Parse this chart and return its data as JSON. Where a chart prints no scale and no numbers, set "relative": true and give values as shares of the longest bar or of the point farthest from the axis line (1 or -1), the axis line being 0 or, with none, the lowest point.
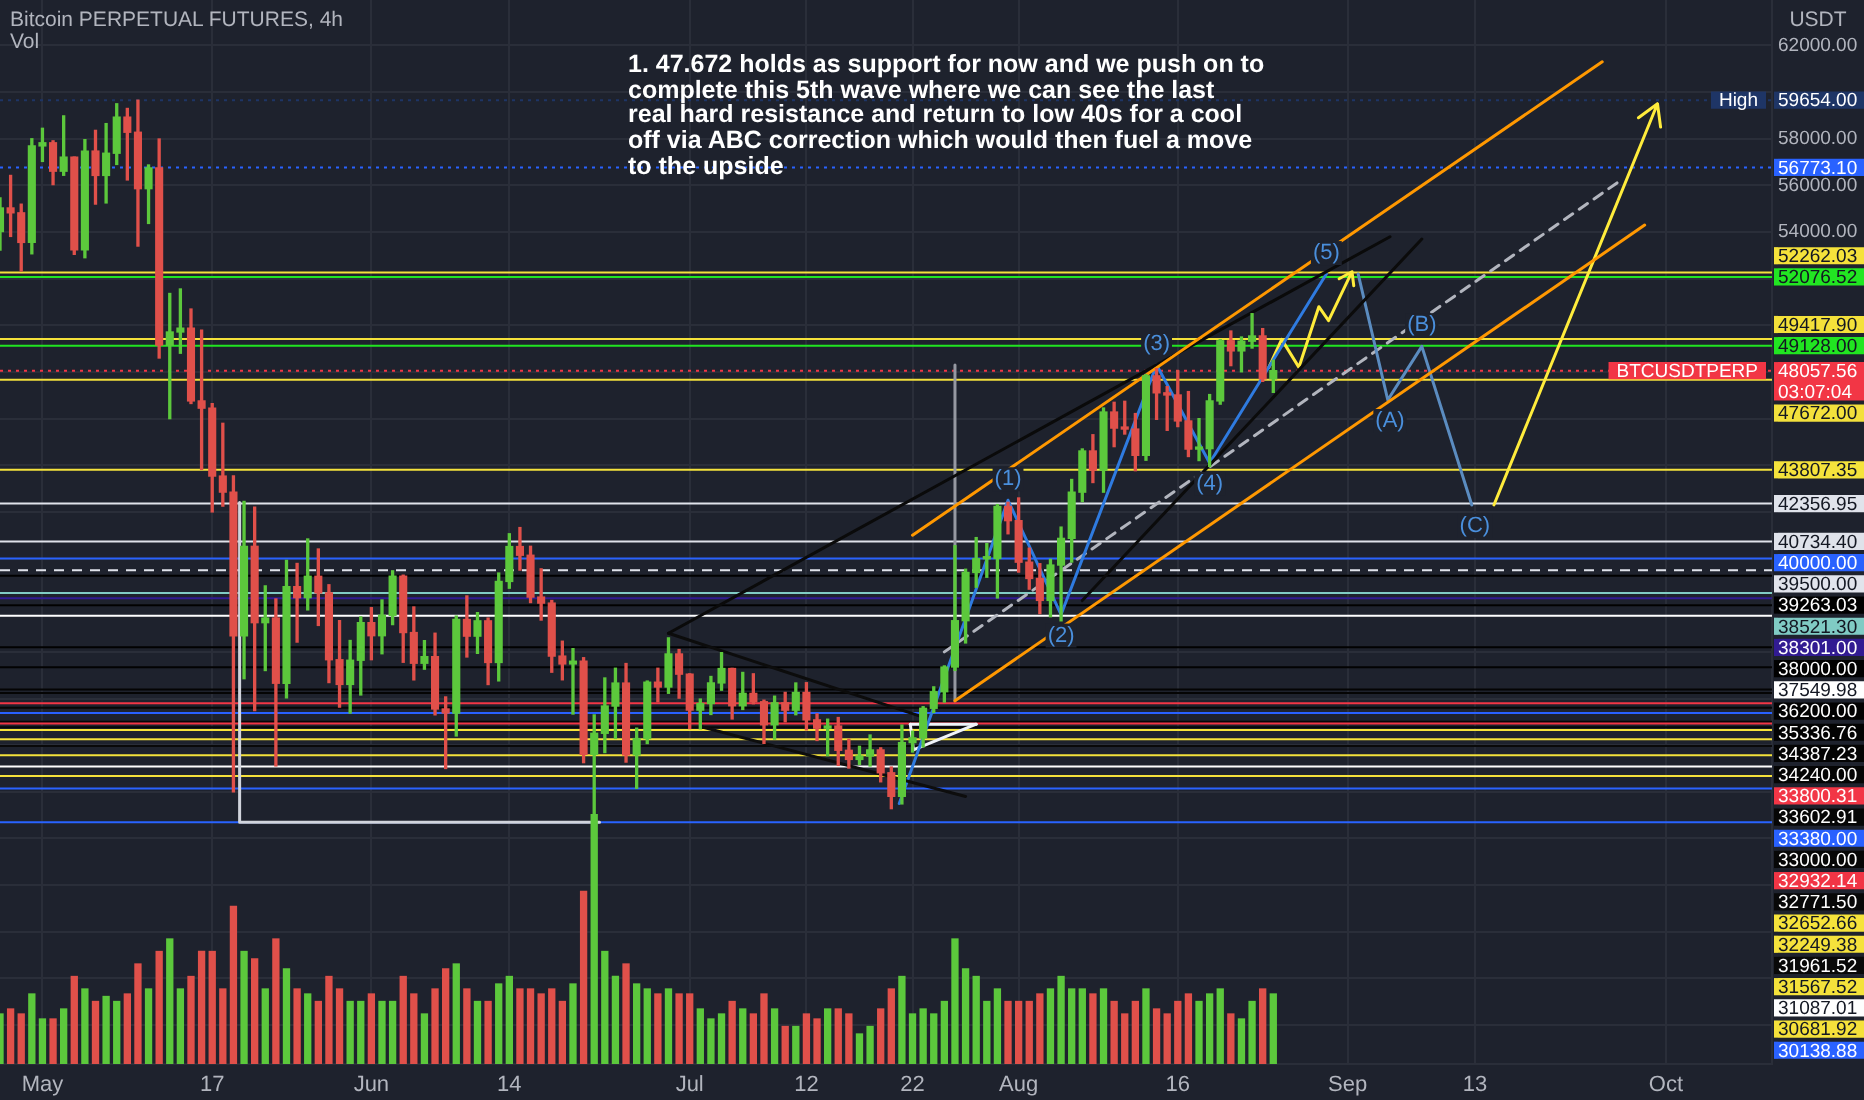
{
  "chart_data": [
    {
      "type": "candlestick",
      "title": "Bitcoin PERPETUAL FUTURES, 4h",
      "ylabel": "USDT",
      "x": [
        "--04-27",
        "--04-28",
        "--04-29",
        "--04-30",
        "--05-01",
        "--05-02",
        "--05-03",
        "--05-04",
        "--05-05",
        "--05-06",
        "--05-07",
        "--05-08",
        "--05-09",
        "--05-10",
        "--05-11",
        "--05-12",
        "--05-13",
        "--05-14",
        "--05-15",
        "--05-16",
        "--05-17",
        "--05-18",
        "--05-19",
        "--05-20",
        "--05-21",
        "--05-22",
        "--05-23",
        "--05-24",
        "--05-25",
        "--05-26",
        "--05-27",
        "--05-28",
        "--05-29",
        "--05-30",
        "--05-31",
        "--06-01",
        "--06-02",
        "--06-03",
        "--06-04",
        "--06-05",
        "--06-06",
        "--06-07",
        "--06-08",
        "--06-09",
        "--06-10",
        "--06-11",
        "--06-12",
        "--06-13",
        "--06-14",
        "--06-15",
        "--06-16",
        "--06-17",
        "--06-18",
        "--06-19",
        "--06-20",
        "--06-21",
        "--06-22",
        "--06-23",
        "--06-24",
        "--06-25",
        "--06-26",
        "--06-27",
        "--06-28",
        "--06-29",
        "--06-30",
        "--07-01",
        "--07-02",
        "--07-03",
        "--07-04",
        "--07-05",
        "--07-06",
        "--07-07",
        "--07-08",
        "--07-09",
        "--07-10",
        "--07-11",
        "--07-12",
        "--07-13",
        "--07-14",
        "--07-15",
        "--07-16",
        "--07-17",
        "--07-18",
        "--07-19",
        "--07-20",
        "--07-21",
        "--07-22",
        "--07-23",
        "--07-24",
        "--07-25",
        "--07-26",
        "--07-27",
        "--07-28",
        "--07-29",
        "--07-30",
        "--07-31",
        "--08-01",
        "--08-02",
        "--08-03",
        "--08-04",
        "--08-05",
        "--08-06",
        "--08-07",
        "--08-08",
        "--08-09",
        "--08-10",
        "--08-11",
        "--08-12",
        "--08-13",
        "--08-14",
        "--08-15",
        "--08-16",
        "--08-17",
        "--08-18",
        "--08-19",
        "--08-20",
        "--08-21",
        "--08-22",
        "--08-23",
        "--08-24",
        "--08-25"
      ],
      "ohlc": [
        [
          54021,
          55460,
          53222,
          55034
        ],
        [
          55034,
          56428,
          53813,
          54825
        ],
        [
          54825,
          55195,
          52330,
          53556
        ],
        [
          53556,
          58000,
          53068,
          57694
        ],
        [
          57694,
          58449,
          57029,
          57828
        ],
        [
          57828,
          57911,
          56035,
          56610
        ],
        [
          56610,
          58981,
          56435,
          57213
        ],
        [
          57213,
          57214,
          53046,
          53241
        ],
        [
          53241,
          57963,
          52900,
          57473
        ],
        [
          57473,
          58360,
          55200,
          56428
        ],
        [
          56428,
          58650,
          55250,
          57380
        ],
        [
          57380,
          59500,
          56900,
          58928
        ],
        [
          58928,
          59300,
          56235,
          58280
        ],
        [
          58280,
          59654,
          53400,
          55860
        ],
        [
          55860,
          56876,
          54370,
          56750
        ],
        [
          56750,
          57990,
          48600,
          49150
        ],
        [
          49150,
          51367,
          46000,
          49716
        ],
        [
          49716,
          51560,
          48805,
          49880
        ],
        [
          49880,
          50700,
          46650,
          46760
        ],
        [
          46760,
          49795,
          43825,
          46450
        ],
        [
          46450,
          46643,
          42001,
          43538
        ],
        [
          43538,
          45800,
          42250,
          42850
        ],
        [
          42850,
          43546,
          30000,
          36690
        ],
        [
          36690,
          42451,
          34850,
          40526
        ],
        [
          40526,
          42200,
          33488,
          37252
        ],
        [
          37252,
          38829,
          35200,
          37449
        ],
        [
          37449,
          38270,
          31111,
          34655
        ],
        [
          34655,
          39920,
          34031,
          38796
        ],
        [
          38796,
          39791,
          36420,
          38324
        ],
        [
          38324,
          40841,
          37800,
          39241
        ],
        [
          39241,
          40411,
          37134,
          38529
        ],
        [
          38529,
          38877,
          34684,
          35663
        ],
        [
          35663,
          37338,
          33632,
          34605
        ],
        [
          34605,
          36488,
          33379,
          35641
        ],
        [
          35641,
          37499,
          34153,
          37254
        ],
        [
          37254,
          37894,
          35666,
          36693
        ],
        [
          36693,
          38225,
          35920,
          37568
        ],
        [
          37568,
          39476,
          37170,
          39246
        ],
        [
          39246,
          39289,
          35555,
          36829
        ],
        [
          36829,
          37925,
          34800,
          35513
        ],
        [
          35513,
          36480,
          35258,
          35796
        ],
        [
          35796,
          36800,
          33300,
          33552
        ],
        [
          33552,
          34068,
          31000,
          33380
        ],
        [
          33380,
          37534,
          32396,
          37388
        ],
        [
          37388,
          38399,
          35782,
          36675
        ],
        [
          36675,
          37681,
          35937,
          37331
        ],
        [
          37331,
          37447,
          34600,
          35546
        ],
        [
          35546,
          39380,
          34757,
          39020
        ],
        [
          39020,
          41064,
          38730,
          40516
        ],
        [
          40516,
          41330,
          39506,
          40144
        ],
        [
          40144,
          40527,
          38116,
          38349
        ],
        [
          38349,
          39560,
          37365,
          38092
        ],
        [
          38092,
          38202,
          35129,
          35819
        ],
        [
          35819,
          36457,
          34803,
          35483
        ],
        [
          35483,
          36137,
          33336,
          35600
        ],
        [
          35600,
          35750,
          31251,
          31608
        ],
        [
          31608,
          33298,
          28805,
          32509
        ],
        [
          32509,
          34881,
          31683,
          33678
        ],
        [
          33678,
          35298,
          32286,
          34663
        ],
        [
          34663,
          35500,
          31275,
          31584
        ],
        [
          31584,
          32730,
          30151,
          32283
        ],
        [
          32283,
          34749,
          32071,
          34700
        ],
        [
          34700,
          35297,
          33862,
          34494
        ],
        [
          34494,
          36600,
          34225,
          35911
        ],
        [
          35911,
          36100,
          34017,
          35045
        ],
        [
          35045,
          35057,
          32711,
          33504
        ],
        [
          33504,
          33977,
          32699,
          33786
        ],
        [
          33786,
          34945,
          33316,
          34669
        ],
        [
          34669,
          35967,
          34357,
          35286
        ],
        [
          35286,
          35293,
          33125,
          33690
        ],
        [
          33690,
          35118,
          33532,
          34220
        ],
        [
          34220,
          35059,
          33777,
          33862
        ],
        [
          33862,
          33928,
          32078,
          32875
        ],
        [
          32875,
          34100,
          32261,
          33815
        ],
        [
          33815,
          34262,
          33004,
          33502
        ],
        [
          33502,
          34666,
          33306,
          34259
        ],
        [
          34259,
          34678,
          32658,
          33086
        ],
        [
          33086,
          33340,
          32202,
          32730
        ],
        [
          32730,
          33114,
          31550,
          32820
        ],
        [
          32820,
          33185,
          31133,
          31780
        ],
        [
          31780,
          32249,
          31020,
          31389
        ],
        [
          31389,
          31949,
          31179,
          31533
        ],
        [
          31533,
          32435,
          31108,
          31796
        ],
        [
          31796,
          31885,
          30429,
          30817
        ],
        [
          30817,
          31063,
          29278,
          29807
        ],
        [
          29807,
          32858,
          29482,
          32110
        ],
        [
          32110,
          32595,
          31708,
          32313
        ],
        [
          32313,
          33650,
          31925,
          33581
        ],
        [
          33581,
          34500,
          33401,
          34292
        ],
        [
          34292,
          35398,
          33851,
          35350
        ],
        [
          35350,
          40550,
          35205,
          37337
        ],
        [
          37337,
          39542,
          36384,
          39406
        ],
        [
          39406,
          40900,
          38772,
          39995
        ],
        [
          39995,
          40640,
          39200,
          40008
        ],
        [
          40008,
          42316,
          38313,
          42235
        ],
        [
          42235,
          42414,
          41064,
          41626
        ],
        [
          41626,
          42599,
          39423,
          39846
        ],
        [
          39846,
          40446,
          38690,
          39147
        ],
        [
          39147,
          39780,
          37642,
          38207
        ],
        [
          38207,
          39969,
          37508,
          39723
        ],
        [
          39723,
          41350,
          37332,
          40867
        ],
        [
          40867,
          43392,
          39853,
          42848
        ],
        [
          42848,
          44700,
          42446,
          44614
        ],
        [
          44614,
          45310,
          43261,
          43792
        ],
        [
          43792,
          46456,
          42848,
          46284
        ],
        [
          46284,
          46700,
          44800,
          45595
        ],
        [
          45595,
          46743,
          45341,
          45554
        ],
        [
          45554,
          46218,
          43770,
          44428
        ],
        [
          44428,
          47886,
          44217,
          47835
        ],
        [
          47835,
          48144,
          45971,
          47107
        ],
        [
          47107,
          47372,
          45500,
          47015
        ],
        [
          47015,
          48053,
          45660,
          45902
        ],
        [
          45902,
          47160,
          44376,
          44695
        ],
        [
          44695,
          46000,
          44203,
          44714
        ],
        [
          44714,
          47033,
          43950,
          46760
        ],
        [
          46760,
          49382,
          46622,
          49339
        ],
        [
          49339,
          49757,
          48273,
          48905
        ],
        [
          48905,
          49500,
          48010,
          49321
        ],
        [
          49321,
          50500,
          49028,
          49546
        ],
        [
          49546,
          49860,
          47600,
          47707
        ],
        [
          47707,
          48500,
          47127,
          48057.56
        ]
      ],
      "colors": [
        "#5cc83c",
        "#e0504a",
        "#e0504a",
        "#5cc83c",
        "#5cc83c",
        "#e0504a",
        "#5cc83c",
        "#e0504a",
        "#5cc83c",
        "#e0504a",
        "#5cc83c",
        "#5cc83c",
        "#e0504a",
        "#e0504a",
        "#5cc83c",
        "#e0504a",
        "#5cc83c",
        "#5cc83c",
        "#e0504a",
        "#e0504a",
        "#e0504a",
        "#e0504a",
        "#e0504a",
        "#5cc83c",
        "#e0504a",
        "#5cc83c",
        "#e0504a",
        "#5cc83c",
        "#e0504a",
        "#5cc83c",
        "#e0504a",
        "#e0504a",
        "#e0504a",
        "#5cc83c",
        "#5cc83c",
        "#e0504a",
        "#5cc83c",
        "#5cc83c",
        "#e0504a",
        "#e0504a",
        "#5cc83c",
        "#e0504a",
        "#e0504a",
        "#5cc83c",
        "#e0504a",
        "#5cc83c",
        "#e0504a",
        "#5cc83c",
        "#5cc83c",
        "#e0504a",
        "#e0504a",
        "#e0504a",
        "#e0504a",
        "#e0504a",
        "#5cc83c",
        "#e0504a",
        "#5cc83c",
        "#5cc83c",
        "#5cc83c",
        "#e0504a",
        "#5cc83c",
        "#5cc83c",
        "#e0504a",
        "#5cc83c",
        "#e0504a",
        "#e0504a",
        "#5cc83c",
        "#5cc83c",
        "#5cc83c",
        "#e0504a",
        "#5cc83c",
        "#e0504a",
        "#e0504a",
        "#5cc83c",
        "#e0504a",
        "#5cc83c",
        "#e0504a",
        "#e0504a",
        "#5cc83c",
        "#e0504a",
        "#e0504a",
        "#5cc83c",
        "#5cc83c",
        "#e0504a",
        "#e0504a",
        "#5cc83c",
        "#5cc83c",
        "#5cc83c",
        "#5cc83c",
        "#5cc83c",
        "#5cc83c",
        "#5cc83c",
        "#5cc83c",
        "#5cc83c",
        "#5cc83c",
        "#e0504a",
        "#e0504a",
        "#e0504a",
        "#e0504a",
        "#5cc83c",
        "#5cc83c",
        "#5cc83c",
        "#5cc83c",
        "#e0504a",
        "#5cc83c",
        "#e0504a",
        "#e0504a",
        "#e0504a",
        "#5cc83c",
        "#e0504a",
        "#e0504a",
        "#e0504a",
        "#e0504a",
        "#5cc83c",
        "#5cc83c",
        "#5cc83c",
        "#e0504a",
        "#5cc83c",
        "#5cc83c",
        "#e0504a",
        "#5cc83c"
      ],
      "series": [
        {
          "type": "line",
          "color": "#ff9800",
          "x": [
            "--07-22",
            "--09-25"
          ],
          "values": [
            41000,
            61300
          ]
        },
        {
          "type": "line",
          "color": "#ff9801",
          "x": [
            "--07-26",
            "--09-29"
          ],
          "values": [
            33900,
            54300
          ]
        },
        {
          "type": "line",
          "color": "#0a0a0a",
          "x": [
            "--06-29",
            "--09-05"
          ],
          "values": [
            36800,
            53800
          ]
        },
        {
          "type": "line",
          "color": "#0b0b0b",
          "x": [
            "--08-07",
            "--09-08"
          ],
          "values": [
            38200,
            53700
          ]
        },
        {
          "type": "line",
          "color": "#0c0c0c",
          "x": [
            "--06-29",
            "--07-23"
          ],
          "values": [
            36800,
            33200
          ]
        },
        {
          "type": "line",
          "color": "#0d0d0d",
          "x": [
            "--07-02",
            "--07-27"
          ],
          "values": [
            32800,
            29800
          ]
        },
        {
          "type": "line",
          "color": "#2f7be0",
          "x": [
            "--07-20T18:00",
            "--07-31",
            "--08-05",
            "--08-14",
            "--08-19",
            "--08-30"
          ],
          "values": [
            29500,
            42500,
            37600,
            48300,
            44100,
            52200
          ]
        },
        {
          "type": "line",
          "color": "#ffeb3b",
          "x": [
            "--08-24T14:00",
            "--08-25T19:00",
            "--08-27T10:00",
            "--08-29T07:00",
            "--08-30T05:00",
            "--09-01T10:00",
            "--08-31T05:00",
            "--09-01T10:00",
            "--09-01T14:00"
          ],
          "values": [
            48200,
            49400,
            48200,
            50800,
            50200,
            52300,
            52000,
            52300,
            51700
          ]
        },
        {
          "type": "line",
          "color": "#5b8cc0",
          "x": [
            "--09-02",
            "--09-04T19:00",
            "--09-08",
            "--09-12T17:00"
          ],
          "values": [
            52200,
            46800,
            49100,
            42300
          ]
        },
        {
          "type": "line",
          "color": "#ffec3c",
          "x": [
            "--09-14T19:00",
            "--09-30T05:00",
            "--09-28T10:00",
            "--09-30T05:00",
            "--09-30T12:00"
          ],
          "values": [
            42300,
            59500,
            58900,
            59500,
            58500
          ]
        },
        {
          "type": "line",
          "color": "#b2b5be",
          "line_style": "dashed",
          "x": [
            "--07-25",
            "--09-27"
          ],
          "values": [
            36000,
            56300
          ]
        },
        {
          "type": "line",
          "color": "#d1d4dc",
          "x": [
            "--05-19T14:00",
            "--05-19T14:00",
            "--06-22T12:00"
          ],
          "values": [
            42400,
            28700,
            28700
          ]
        },
        {
          "type": "line",
          "color": "#9598a1",
          "x": [
            "--07-26",
            "--07-26"
          ],
          "values": [
            48300,
            33900
          ]
        },
        {
          "type": "line",
          "color": "#f0f3fa",
          "x": [
            "--07-21T19:00",
            "--07-28"
          ],
          "values": [
            32900,
            32900
          ]
        },
        {
          "type": "line",
          "color": "#f0f3f9",
          "x": [
            "--07-21T19:00",
            "--07-22T02:00",
            "--07-28"
          ],
          "values": [
            32900,
            31800,
            32900
          ]
        }
      ],
      "xlim": [
        "--04-27",
        "--10-11"
      ],
      "xticks": [
        {
          "value": "--05-01",
          "label": "May"
        },
        {
          "value": "--05-17",
          "label": "17"
        },
        {
          "value": "--06-01",
          "label": "Jun"
        },
        {
          "value": "--06-14",
          "label": "14"
        },
        {
          "value": "--07-01",
          "label": "Jul"
        },
        {
          "value": "--07-12",
          "label": "12"
        },
        {
          "value": "--07-22",
          "label": "22"
        },
        {
          "value": "--08-01",
          "label": "Aug"
        },
        {
          "value": "--08-16",
          "label": "16"
        },
        {
          "value": "--09-01",
          "label": "Sep"
        },
        {
          "value": "--09-13",
          "label": "13"
        },
        {
          "value": "--10-01",
          "label": "Oct"
        }
      ],
      "ylim": [
        18330,
        63950
      ],
      "yticks": [
        {
          "value": 20000,
          "label": null
        },
        {
          "value": 22000,
          "label": null
        },
        {
          "value": 24000,
          "label": null
        },
        {
          "value": 26000,
          "label": null
        },
        {
          "value": 28000,
          "label": null
        },
        {
          "value": 30000,
          "label": null
        },
        {
          "value": 32000,
          "label": null
        },
        {
          "value": 34000,
          "label": null
        },
        {
          "value": 36000,
          "label": null
        },
        {
          "value": 38000,
          "label": null
        },
        {
          "value": 40000,
          "label": null
        },
        {
          "value": 42000,
          "label": null
        },
        {
          "value": 44000,
          "label": null
        },
        {
          "value": 46000,
          "label": null
        },
        {
          "value": 48000,
          "label": null
        },
        {
          "value": 50000,
          "label": null
        },
        {
          "value": 52000,
          "label": null
        },
        {
          "value": 54000,
          "label": "54000.00"
        },
        {
          "value": 56000,
          "label": "56000.00"
        },
        {
          "value": 58000,
          "label": "58000.00"
        },
        {
          "value": 60000,
          "label": null
        },
        {
          "value": 62000,
          "label": "62000.00"
        }
      ],
      "grid": true,
      "legend": "right",
      "ref_lines": [
        {
          "axis": "y",
          "value": 59654,
          "label": "59654.00",
          "color": "#1e3566",
          "line_style": "dotted"
        },
        {
          "axis": "y",
          "value": 56773.1,
          "label": "56773.10",
          "color": "#2962ff",
          "line_style": "dotted"
        },
        {
          "axis": "y",
          "value": 52262.03,
          "label": "52262.03",
          "color": "#f5e23b"
        },
        {
          "axis": "y",
          "value": 52076.52,
          "label": "52076.52",
          "color": "#22e622"
        },
        {
          "axis": "y",
          "value": 49417.9,
          "label": "49417.90",
          "color": "#f4e13a"
        },
        {
          "axis": "y",
          "value": 49128,
          "label": "49128.00",
          "color": "#21e521"
        },
        {
          "axis": "y",
          "value": 48057.56,
          "label": "48057.56\n03:07:04",
          "color": "#f23645",
          "line_style": "dotted"
        },
        {
          "axis": "y",
          "value": 47672,
          "label": "47672.00",
          "color": "#f3e03c"
        },
        {
          "axis": "y",
          "value": 43807.35,
          "label": "43807.35",
          "color": "#f5e33c"
        },
        {
          "axis": "y",
          "value": 42356.95,
          "label": "42356.95",
          "color": "#e0e3eb"
        },
        {
          "axis": "y",
          "value": 40734.4,
          "label": "40734.40",
          "color": "#dfe2ea"
        },
        {
          "axis": "y",
          "value": 40000,
          "label": "40000.00",
          "color": "#2962fe"
        },
        {
          "axis": "y",
          "value": 39500,
          "label": "39500.00",
          "color": "#e1e4ec",
          "line_style": "dashed"
        },
        {
          "axis": "y",
          "value": 39263.03,
          "label": "39263.03",
          "color": "#000000"
        },
        {
          "axis": "y",
          "value": 38521.3,
          "label": "38521.30",
          "color": "#80cbc4"
        },
        {
          "axis": "y",
          "value": 38301,
          "label": "38301.00",
          "color": "#311b92"
        },
        {
          "axis": "y",
          "value": 38000,
          "label": "38000.00",
          "color": "#010101"
        },
        {
          "axis": "y",
          "value": 37549.98,
          "label": "37549.98",
          "color": "#ffffff"
        },
        {
          "axis": "y",
          "value": 36200,
          "label": "36200.00",
          "color": "#020202"
        },
        {
          "axis": "y",
          "value": 35336.76,
          "label": "35336.76",
          "color": "#030303"
        },
        {
          "axis": "y",
          "value": 34387.23,
          "label": "34387.23",
          "color": "#040404"
        },
        {
          "axis": "y",
          "value": 34240,
          "label": "34240.00",
          "color": "#050505"
        },
        {
          "axis": "y",
          "value": 33800.31,
          "label": "33800.31",
          "color": "#f23646"
        },
        {
          "axis": "y",
          "value": 33602.91,
          "label": "33602.91",
          "color": "#060606"
        },
        {
          "axis": "y",
          "value": 33380,
          "label": "33380.00",
          "color": "#2961ff"
        },
        {
          "axis": "y",
          "value": 33000,
          "label": "33000.00",
          "color": "#070707"
        },
        {
          "axis": "y",
          "value": 32932.14,
          "label": "32932.14",
          "color": "#f13545"
        },
        {
          "axis": "y",
          "value": 32771.5,
          "label": "32771.50",
          "color": "#080808"
        },
        {
          "axis": "y",
          "value": 32652.66,
          "label": "32652.66",
          "color": "#f6e33b"
        },
        {
          "axis": "y",
          "value": 32249.38,
          "label": "32249.38",
          "color": "#f5e23c"
        },
        {
          "axis": "y",
          "value": 31961.52,
          "label": "31961.52",
          "color": "#090909"
        },
        {
          "axis": "y",
          "value": 31567.52,
          "label": "31567.52",
          "color": "#f4e23b"
        },
        {
          "axis": "y",
          "value": 31087.01,
          "label": "31087.01",
          "color": "#fefefe"
        },
        {
          "axis": "y",
          "value": 30681.92,
          "label": "30681.92",
          "color": "#f5e13b"
        },
        {
          "axis": "y",
          "value": 30138.88,
          "label": "30138.88",
          "color": "#2a62ff"
        },
        {
          "axis": "y",
          "value": 28700,
          "color": "#2963ff"
        }
      ],
      "annotations": [
        "1. 47.672 holds as support for now and we push on to\ncomplete this 5th wave where we can see the last\nreal hard resistance and return to low 40s for a cool\noff via ABC correction which would then fuel a move\nto the upside",
        {
          "text": "High",
          "y": 59654
        },
        {
          "text": "BTCUSDTPERP",
          "y": 48057.56
        },
        {
          "text": "(1)",
          "x": "--07-31",
          "y": 43400
        },
        {
          "text": "(2)",
          "x": "--08-05",
          "y": 36700
        },
        {
          "text": "(3)",
          "x": "--08-14",
          "y": 49200
        },
        {
          "text": "(4)",
          "x": "--08-19",
          "y": 43200
        },
        {
          "text": "(5)",
          "x": "--08-30",
          "y": 53100
        },
        {
          "text": "(A)",
          "x": "--09-05",
          "y": 45900
        },
        {
          "text": "(B)",
          "x": "--09-08",
          "y": 50000
        },
        {
          "text": "(C)",
          "x": "--09-13",
          "y": 41400
        }
      ]
    },
    {
      "type": "bar",
      "title": "Vol",
      "relative": true,
      "x": [
        "--04-27",
        "--04-28",
        "--04-29",
        "--04-30",
        "--05-01",
        "--05-02",
        "--05-03",
        "--05-04",
        "--05-05",
        "--05-06",
        "--05-07",
        "--05-08",
        "--05-09",
        "--05-10",
        "--05-11",
        "--05-12",
        "--05-13",
        "--05-14",
        "--05-15",
        "--05-16",
        "--05-17",
        "--05-18",
        "--05-19",
        "--05-20",
        "--05-21",
        "--05-22",
        "--05-23",
        "--05-24",
        "--05-25",
        "--05-26",
        "--05-27",
        "--05-28",
        "--05-29",
        "--05-30",
        "--05-31",
        "--06-01",
        "--06-02",
        "--06-03",
        "--06-04",
        "--06-05",
        "--06-06",
        "--06-07",
        "--06-08",
        "--06-09",
        "--06-10",
        "--06-11",
        "--06-12",
        "--06-13",
        "--06-14",
        "--06-15",
        "--06-16",
        "--06-17",
        "--06-18",
        "--06-19",
        "--06-20",
        "--06-21",
        "--06-22",
        "--06-23",
        "--06-24",
        "--06-25",
        "--06-26",
        "--06-27",
        "--06-28",
        "--06-29",
        "--06-30",
        "--07-01",
        "--07-02",
        "--07-03",
        "--07-04",
        "--07-05",
        "--07-06",
        "--07-07",
        "--07-08",
        "--07-09",
        "--07-10",
        "--07-11",
        "--07-12",
        "--07-13",
        "--07-14",
        "--07-15",
        "--07-16",
        "--07-17",
        "--07-18",
        "--07-19",
        "--07-20",
        "--07-21",
        "--07-22",
        "--07-23",
        "--07-24",
        "--07-25",
        "--07-26",
        "--07-27",
        "--07-28",
        "--07-29",
        "--07-30",
        "--07-31",
        "--08-01",
        "--08-02",
        "--08-03",
        "--08-04",
        "--08-05",
        "--08-06",
        "--08-07",
        "--08-08",
        "--08-09",
        "--08-10",
        "--08-11",
        "--08-12",
        "--08-13",
        "--08-14",
        "--08-15",
        "--08-16",
        "--08-17",
        "--08-18",
        "--08-19",
        "--08-20",
        "--08-21",
        "--08-22",
        "--08-23",
        "--08-24",
        "--08-25"
      ],
      "values": [
        0.2,
        0.22,
        0.2,
        0.28,
        0.18,
        0.18,
        0.22,
        0.35,
        0.3,
        0.25,
        0.27,
        0.25,
        0.28,
        0.4,
        0.3,
        0.45,
        0.5,
        0.3,
        0.35,
        0.45,
        0.45,
        0.3,
        0.63,
        0.45,
        0.42,
        0.3,
        0.5,
        0.38,
        0.3,
        0.28,
        0.25,
        0.35,
        0.3,
        0.25,
        0.25,
        0.28,
        0.25,
        0.25,
        0.35,
        0.28,
        0.2,
        0.3,
        0.38,
        0.4,
        0.3,
        0.25,
        0.25,
        0.32,
        0.35,
        0.3,
        0.3,
        0.28,
        0.3,
        0.25,
        0.32,
        0.69,
        1,
        0.45,
        0.35,
        0.4,
        0.32,
        0.3,
        0.28,
        0.3,
        0.28,
        0.28,
        0.22,
        0.18,
        0.2,
        0.25,
        0.22,
        0.2,
        0.28,
        0.22,
        0.15,
        0.15,
        0.2,
        0.18,
        0.22,
        0.22,
        0.2,
        0.12,
        0.15,
        0.22,
        0.3,
        0.35,
        0.2,
        0.22,
        0.2,
        0.25,
        0.5,
        0.38,
        0.35,
        0.25,
        0.3,
        0.25,
        0.25,
        0.25,
        0.28,
        0.3,
        0.35,
        0.3,
        0.3,
        0.28,
        0.3,
        0.25,
        0.2,
        0.25,
        0.3,
        0.22,
        0.2,
        0.25,
        0.28,
        0.25,
        0.28,
        0.3,
        0.2,
        0.18,
        0.25,
        0.3,
        0.28
      ],
      "colors": [
        "#5cc83c",
        "#e0504a",
        "#e0504a",
        "#5cc83c",
        "#5cc83c",
        "#e0504a",
        "#5cc83c",
        "#e0504a",
        "#5cc83c",
        "#e0504a",
        "#5cc83c",
        "#5cc83c",
        "#e0504a",
        "#e0504a",
        "#5cc83c",
        "#e0504a",
        "#5cc83c",
        "#5cc83c",
        "#e0504a",
        "#e0504a",
        "#e0504a",
        "#e0504a",
        "#e0504a",
        "#5cc83c",
        "#e0504a",
        "#5cc83c",
        "#e0504a",
        "#5cc83c",
        "#e0504a",
        "#5cc83c",
        "#e0504a",
        "#e0504a",
        "#e0504a",
        "#5cc83c",
        "#5cc83c",
        "#e0504a",
        "#5cc83c",
        "#5cc83c",
        "#e0504a",
        "#e0504a",
        "#5cc83c",
        "#e0504a",
        "#e0504a",
        "#5cc83c",
        "#e0504a",
        "#5cc83c",
        "#e0504a",
        "#5cc83c",
        "#5cc83c",
        "#e0504a",
        "#e0504a",
        "#e0504a",
        "#e0504a",
        "#e0504a",
        "#5cc83c",
        "#e0504a",
        "#5cc83c",
        "#5cc83c",
        "#5cc83c",
        "#e0504a",
        "#5cc83c",
        "#5cc83c",
        "#e0504a",
        "#5cc83c",
        "#e0504a",
        "#e0504a",
        "#5cc83c",
        "#5cc83c",
        "#5cc83c",
        "#e0504a",
        "#5cc83c",
        "#e0504a",
        "#e0504a",
        "#5cc83c",
        "#e0504a",
        "#5cc83c",
        "#e0504a",
        "#e0504a",
        "#5cc83c",
        "#e0504a",
        "#e0504a",
        "#5cc83c",
        "#5cc83c",
        "#e0504a",
        "#e0504a",
        "#5cc83c",
        "#5cc83c",
        "#5cc83c",
        "#5cc83c",
        "#5cc83c",
        "#5cc83c",
        "#5cc83c",
        "#5cc83c",
        "#5cc83c",
        "#5cc83c",
        "#e0504a",
        "#e0504a",
        "#e0504a",
        "#e0504a",
        "#5cc83c",
        "#5cc83c",
        "#5cc83c",
        "#5cc83c",
        "#e0504a",
        "#5cc83c",
        "#e0504a",
        "#e0504a",
        "#e0504a",
        "#5cc83c",
        "#e0504a",
        "#e0504a",
        "#e0504a",
        "#e0504a",
        "#5cc83c",
        "#5cc83c",
        "#5cc83c",
        "#e0504a",
        "#5cc83c",
        "#5cc83c",
        "#e0504a",
        "#5cc83c"
      ],
      "xlim": [
        "--04-27",
        "--10-11"
      ],
      "tick_labels": false
    }
  ]
}
